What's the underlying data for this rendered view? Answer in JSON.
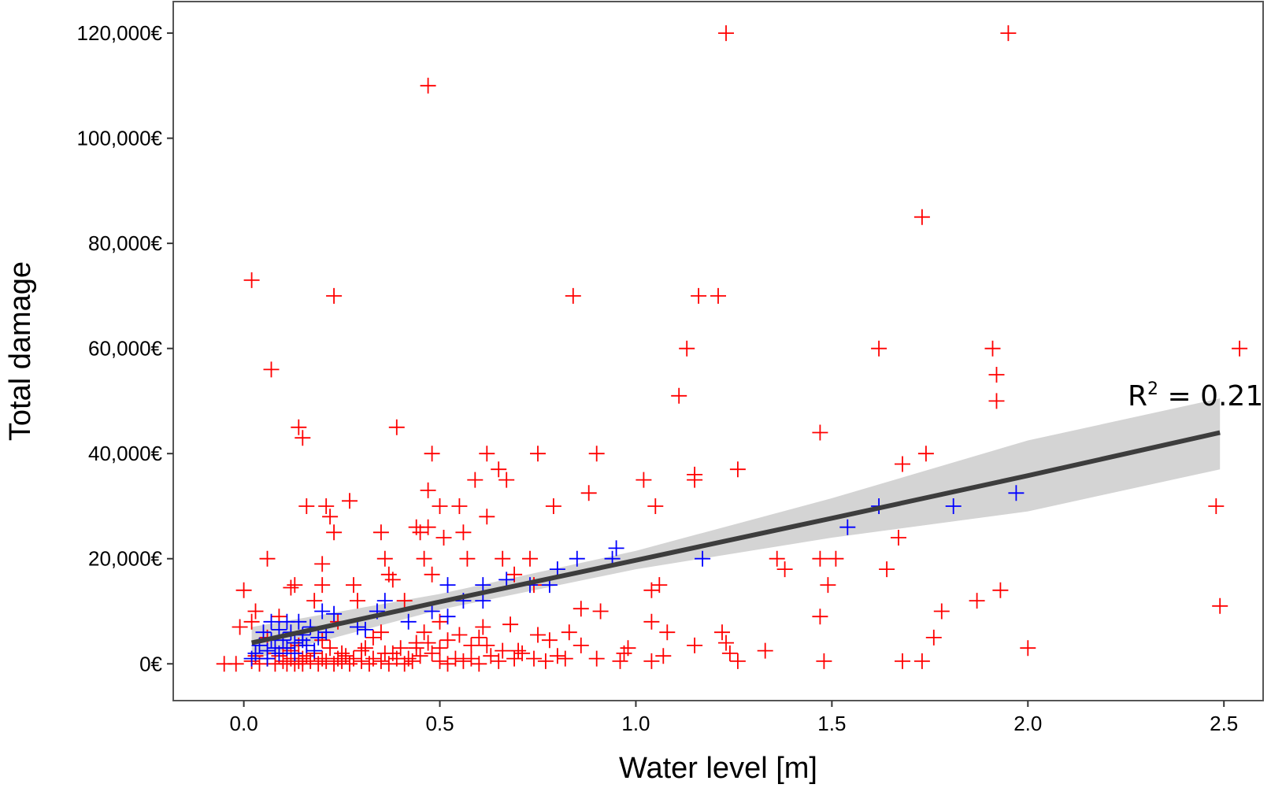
{
  "chart_data": {
    "type": "scatter",
    "xlabel": "Water level [m]",
    "ylabel": "Total damage",
    "xlim": [
      -0.18,
      2.6
    ],
    "ylim": [
      -7000,
      126000
    ],
    "x_ticks": [
      {
        "value": 0.0,
        "label": "0.0"
      },
      {
        "value": 0.5,
        "label": "0.5"
      },
      {
        "value": 1.0,
        "label": "1.0"
      },
      {
        "value": 1.5,
        "label": "1.5"
      },
      {
        "value": 2.0,
        "label": "2.0"
      },
      {
        "value": 2.5,
        "label": "2.5"
      }
    ],
    "y_ticks": [
      {
        "value": 0,
        "label": "0€"
      },
      {
        "value": 20000,
        "label": "20,000€"
      },
      {
        "value": 40000,
        "label": "40,000€"
      },
      {
        "value": 60000,
        "label": "60,000€"
      },
      {
        "value": 80000,
        "label": "80,000€"
      },
      {
        "value": 100000,
        "label": "100,000€"
      },
      {
        "value": 120000,
        "label": "120,000€"
      }
    ],
    "grid": false,
    "marker": "plus",
    "annotation": {
      "prefix": "R",
      "superscript": "2",
      "suffix": " = 0.21"
    },
    "colors": {
      "series_red": "#ff0000",
      "series_blue": "#0000ff",
      "fit_line": "#3d3d3d",
      "confidence_band": "#d4d4d4",
      "frame": "#555555"
    },
    "fit": {
      "x": [
        0.02,
        0.5,
        1.0,
        1.5,
        2.0,
        2.49
      ],
      "y": [
        4000,
        11800,
        19700,
        27700,
        35800,
        44000
      ],
      "lower": [
        800,
        10300,
        18000,
        24000,
        29000,
        37000
      ],
      "upper": [
        7000,
        13300,
        21500,
        31500,
        42500,
        50500
      ]
    },
    "series": [
      {
        "color": "#ff0000",
        "points": [
          [
            1.23,
            120000
          ],
          [
            1.95,
            120000
          ],
          [
            0.47,
            110000
          ],
          [
            1.73,
            85000
          ],
          [
            0.02,
            73000
          ],
          [
            0.23,
            70000
          ],
          [
            0.84,
            70000
          ],
          [
            1.16,
            70000
          ],
          [
            1.21,
            70000
          ],
          [
            1.62,
            60000
          ],
          [
            1.13,
            60000
          ],
          [
            1.91,
            60000
          ],
          [
            2.54,
            60000
          ],
          [
            0.07,
            56000
          ],
          [
            1.92,
            55000
          ],
          [
            1.11,
            51000
          ],
          [
            1.92,
            50000
          ],
          [
            0.14,
            45000
          ],
          [
            0.39,
            45000
          ],
          [
            0.15,
            43000
          ],
          [
            1.47,
            44000
          ],
          [
            0.48,
            40000
          ],
          [
            0.62,
            40000
          ],
          [
            0.75,
            40000
          ],
          [
            0.9,
            40000
          ],
          [
            1.74,
            40000
          ],
          [
            0.65,
            37000
          ],
          [
            1.26,
            37000
          ],
          [
            1.68,
            38000
          ],
          [
            0.59,
            35000
          ],
          [
            0.67,
            35000
          ],
          [
            1.02,
            35000
          ],
          [
            1.15,
            35000
          ],
          [
            1.15,
            36000
          ],
          [
            0.47,
            33000
          ],
          [
            0.88,
            32500
          ],
          [
            0.27,
            31000
          ],
          [
            0.16,
            30000
          ],
          [
            0.21,
            30000
          ],
          [
            0.5,
            30000
          ],
          [
            0.55,
            30000
          ],
          [
            0.79,
            30000
          ],
          [
            1.05,
            30000
          ],
          [
            0.22,
            28000
          ],
          [
            0.62,
            28000
          ],
          [
            2.48,
            30000
          ],
          [
            0.44,
            26000
          ],
          [
            0.35,
            25000
          ],
          [
            0.45,
            25000
          ],
          [
            0.51,
            24000
          ],
          [
            0.56,
            25000
          ],
          [
            0.23,
            25000
          ],
          [
            1.67,
            24000
          ],
          [
            0.47,
            26000
          ],
          [
            1.64,
            18000
          ],
          [
            0.06,
            20000
          ],
          [
            0.36,
            20000
          ],
          [
            0.46,
            20000
          ],
          [
            0.57,
            20000
          ],
          [
            0.66,
            20000
          ],
          [
            0.73,
            20000
          ],
          [
            1.36,
            20000
          ],
          [
            1.47,
            20000
          ],
          [
            1.51,
            20000
          ],
          [
            0.2,
            19000
          ],
          [
            0.37,
            17000
          ],
          [
            0.48,
            17000
          ],
          [
            0.69,
            17000
          ],
          [
            1.38,
            18000
          ],
          [
            0.13,
            15000
          ],
          [
            0.2,
            15000
          ],
          [
            0.28,
            15000
          ],
          [
            0.38,
            16000
          ],
          [
            0.74,
            15000
          ],
          [
            1.06,
            15000
          ],
          [
            1.49,
            15000
          ],
          [
            0.0,
            14000
          ],
          [
            0.12,
            14500
          ],
          [
            1.04,
            14000
          ],
          [
            1.93,
            14000
          ],
          [
            0.18,
            12000
          ],
          [
            0.29,
            12000
          ],
          [
            0.41,
            12000
          ],
          [
            0.86,
            10500
          ],
          [
            0.91,
            10000
          ],
          [
            1.87,
            12000
          ],
          [
            1.78,
            10000
          ],
          [
            2.49,
            11000
          ],
          [
            0.03,
            10000
          ],
          [
            0.09,
            9000
          ],
          [
            0.02,
            8000
          ],
          [
            -0.01,
            7000
          ],
          [
            0.24,
            8000
          ],
          [
            0.5,
            8000
          ],
          [
            0.61,
            7000
          ],
          [
            0.68,
            7500
          ],
          [
            1.47,
            9000
          ],
          [
            1.04,
            8000
          ],
          [
            0.35,
            6000
          ],
          [
            0.46,
            6000
          ],
          [
            0.55,
            5500
          ],
          [
            0.83,
            6000
          ],
          [
            1.08,
            6000
          ],
          [
            1.22,
            6000
          ],
          [
            0.75,
            5500
          ],
          [
            1.76,
            5000
          ],
          [
            0.44,
            4000
          ],
          [
            0.52,
            4500
          ],
          [
            0.6,
            5000
          ],
          [
            0.78,
            4500
          ],
          [
            0.86,
            3500
          ],
          [
            0.98,
            3000
          ],
          [
            1.15,
            3500
          ],
          [
            1.23,
            4000
          ],
          [
            1.33,
            2500
          ],
          [
            2.0,
            3000
          ],
          [
            0.31,
            3000
          ],
          [
            0.4,
            3000
          ],
          [
            0.58,
            3500
          ],
          [
            0.66,
            2500
          ],
          [
            0.48,
            2000
          ],
          [
            0.71,
            2000
          ],
          [
            0.8,
            1500
          ],
          [
            0.97,
            2000
          ],
          [
            1.07,
            1500
          ],
          [
            1.24,
            2000
          ],
          [
            0.26,
            1500
          ],
          [
            0.36,
            2000
          ],
          [
            0.42,
            1000
          ],
          [
            0.54,
            1000
          ],
          [
            0.63,
            1500
          ],
          [
            0.74,
            1000
          ],
          [
            0.9,
            1000
          ],
          [
            0.96,
            500
          ],
          [
            1.04,
            500
          ],
          [
            1.26,
            500
          ],
          [
            1.48,
            500
          ],
          [
            1.68,
            500
          ],
          [
            1.73,
            500
          ],
          [
            -0.05,
            0
          ],
          [
            -0.02,
            0
          ],
          [
            0.02,
            500
          ],
          [
            0.04,
            0
          ],
          [
            0.06,
            1000
          ],
          [
            0.08,
            0
          ],
          [
            0.1,
            500
          ],
          [
            0.11,
            0
          ],
          [
            0.12,
            1000
          ],
          [
            0.13,
            0
          ],
          [
            0.14,
            500
          ],
          [
            0.15,
            0
          ],
          [
            0.16,
            1500
          ],
          [
            0.17,
            500
          ],
          [
            0.19,
            0
          ],
          [
            0.2,
            1000
          ],
          [
            0.21,
            500
          ],
          [
            0.23,
            0
          ],
          [
            0.24,
            1000
          ],
          [
            0.25,
            500
          ],
          [
            0.27,
            0
          ],
          [
            0.28,
            1000
          ],
          [
            0.3,
            500
          ],
          [
            0.32,
            0
          ],
          [
            0.33,
            1000
          ],
          [
            0.35,
            500
          ],
          [
            0.37,
            0
          ],
          [
            0.39,
            1000
          ],
          [
            0.41,
            0
          ],
          [
            0.43,
            500
          ],
          [
            0.45,
            1500
          ],
          [
            0.5,
            500
          ],
          [
            0.52,
            0
          ],
          [
            0.56,
            500
          ],
          [
            0.6,
            0
          ],
          [
            0.65,
            500
          ],
          [
            0.69,
            1000
          ],
          [
            0.77,
            500
          ],
          [
            0.82,
            1000
          ],
          [
            0.08,
            2000
          ],
          [
            0.1,
            3000
          ],
          [
            0.12,
            2500
          ],
          [
            0.18,
            2000
          ],
          [
            0.22,
            3000
          ],
          [
            0.3,
            2500
          ],
          [
            0.38,
            2000
          ],
          [
            0.5,
            3000
          ],
          [
            0.62,
            3500
          ],
          [
            0.7,
            2500
          ],
          [
            0.14,
            3500
          ],
          [
            0.06,
            5000
          ],
          [
            0.2,
            4500
          ],
          [
            0.33,
            5000
          ],
          [
            0.47,
            4000
          ],
          [
            0.03,
            1500
          ],
          [
            0.09,
            1500
          ],
          [
            0.15,
            1000
          ],
          [
            0.25,
            2000
          ],
          [
            0.44,
            3000
          ],
          [
            0.58,
            1000
          ]
        ]
      },
      {
        "color": "#0000ff",
        "points": [
          [
            1.97,
            32500
          ],
          [
            1.62,
            30000
          ],
          [
            1.81,
            30000
          ],
          [
            1.54,
            26000
          ],
          [
            0.95,
            22000
          ],
          [
            0.94,
            20000
          ],
          [
            0.85,
            20000
          ],
          [
            1.17,
            20000
          ],
          [
            0.8,
            18000
          ],
          [
            0.67,
            16000
          ],
          [
            0.73,
            15000
          ],
          [
            0.78,
            15000
          ],
          [
            0.61,
            15000
          ],
          [
            0.52,
            15000
          ],
          [
            0.61,
            12000
          ],
          [
            0.56,
            12000
          ],
          [
            0.36,
            12000
          ],
          [
            0.34,
            10000
          ],
          [
            0.48,
            10000
          ],
          [
            0.52,
            9000
          ],
          [
            0.2,
            10000
          ],
          [
            0.23,
            9500
          ],
          [
            0.42,
            8000
          ],
          [
            0.29,
            7000
          ],
          [
            0.31,
            6500
          ],
          [
            0.14,
            8000
          ],
          [
            0.17,
            7000
          ],
          [
            0.11,
            8000
          ],
          [
            0.07,
            8000
          ],
          [
            0.09,
            6500
          ],
          [
            0.12,
            6000
          ],
          [
            0.15,
            5500
          ],
          [
            0.19,
            5000
          ],
          [
            0.05,
            6000
          ],
          [
            0.07,
            4500
          ],
          [
            0.1,
            4500
          ],
          [
            0.13,
            4000
          ],
          [
            0.16,
            3500
          ],
          [
            0.04,
            3500
          ],
          [
            0.08,
            3000
          ],
          [
            0.11,
            3000
          ],
          [
            0.06,
            2500
          ],
          [
            0.03,
            2000
          ],
          [
            0.09,
            2000
          ],
          [
            0.13,
            2000
          ],
          [
            0.02,
            1000
          ],
          [
            0.06,
            1000
          ],
          [
            0.18,
            2500
          ],
          [
            0.15,
            4500
          ],
          [
            0.21,
            6000
          ]
        ]
      }
    ]
  }
}
